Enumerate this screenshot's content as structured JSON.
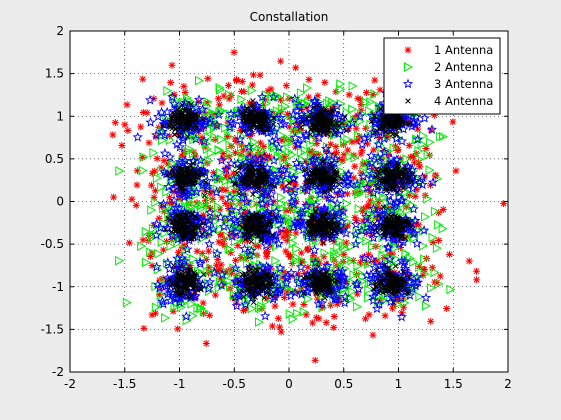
{
  "chart_data": {
    "type": "scatter",
    "title": "Constallation",
    "xlabel": "",
    "ylabel": "",
    "xlim": [
      -2,
      2
    ],
    "ylim": [
      -2,
      2
    ],
    "x_ticks": [
      "-2",
      "-1.5",
      "-1",
      "-0.5",
      "0",
      "0.5",
      "1",
      "1.5",
      "2"
    ],
    "y_ticks": [
      "-2",
      "-1.5",
      "-1",
      "-0.5",
      "0",
      "0.5",
      "1",
      "1.5",
      "2"
    ],
    "grid": true,
    "legend_position": "top-right",
    "constellation_points": [
      [
        -0.95,
        0.95
      ],
      [
        -0.3,
        0.95
      ],
      [
        0.3,
        0.95
      ],
      [
        0.95,
        0.95
      ],
      [
        -0.95,
        0.28
      ],
      [
        -0.3,
        0.28
      ],
      [
        0.3,
        0.28
      ],
      [
        0.95,
        0.28
      ],
      [
        -0.95,
        -0.28
      ],
      [
        -0.3,
        -0.28
      ],
      [
        0.3,
        -0.28
      ],
      [
        0.95,
        -0.28
      ],
      [
        -0.95,
        -0.95
      ],
      [
        -0.3,
        -0.95
      ],
      [
        0.3,
        -0.95
      ],
      [
        0.95,
        -0.95
      ]
    ],
    "series": [
      {
        "name": "1 Antenna",
        "marker": "*",
        "color": "#ff0000",
        "spread": 0.32,
        "points_per_symbol": 45
      },
      {
        "name": "2 Antenna",
        "marker": "triangle-right",
        "color": "#00ee00",
        "spread": 0.2,
        "points_per_symbol": 55
      },
      {
        "name": "3 Antenna",
        "marker": "pentagram",
        "color": "#0000ff",
        "spread": 0.13,
        "points_per_symbol": 70
      },
      {
        "name": "4 Antenna",
        "marker": "x",
        "color": "#000000",
        "spread": 0.07,
        "points_per_symbol": 110
      }
    ]
  }
}
